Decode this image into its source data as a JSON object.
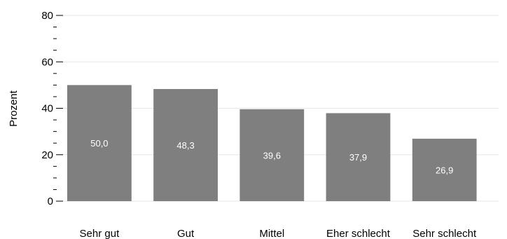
{
  "chart_data": {
    "type": "bar",
    "categories": [
      "Sehr gut",
      "Gut",
      "Mittel",
      "Eher schlecht",
      "Sehr schlecht"
    ],
    "values": [
      50.0,
      48.3,
      39.6,
      37.9,
      26.9
    ],
    "data_labels": [
      "50,0",
      "48,3",
      "39,6",
      "37,9",
      "26,9"
    ],
    "ylabel": "Prozent",
    "ylim": [
      0,
      80
    ],
    "yticks": [
      0,
      20,
      40,
      60,
      80
    ],
    "ytick_labels": [
      "0",
      "20",
      "40",
      "60",
      "80"
    ],
    "minor_ticks_per_interval": 4,
    "grid": true,
    "legend": "none",
    "colors": {
      "bar": "#7f7f7f",
      "grid": "#e6e6e6",
      "axis": "#000000",
      "data_label": "#ffffff"
    }
  }
}
